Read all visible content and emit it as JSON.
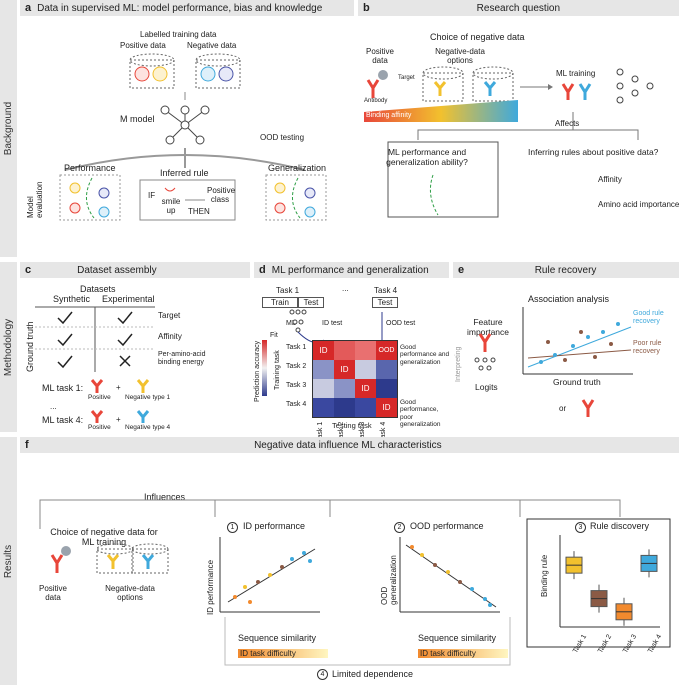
{
  "rows": {
    "background": "Background",
    "methodology": "Methodology",
    "results": "Results"
  },
  "a": {
    "letter": "a",
    "title": "Data in supervised ML: model performance, bias and knowledge",
    "labelled": "Labelled training data",
    "positive": "Positive data",
    "negative": "Negative data",
    "mmodel": "M model",
    "ood": "OOD testing",
    "performance": "Performance",
    "inferred": "Inferred rule",
    "generalization": "Generalization",
    "model_eval": "Model evaluation",
    "if": "IF",
    "smile": "smile up",
    "then": "THEN",
    "positive_class": "Positive class"
  },
  "b": {
    "letter": "b",
    "title": "Research question",
    "choice": "Choice of negative data",
    "positive": "Positive data",
    "target": "Target",
    "negopt": "Negative-data options",
    "antibody": "Antibody",
    "binding": "Binding affinity",
    "mltraining": "ML training",
    "affects": "Affects",
    "q1": "ML performance and generalization ability?",
    "q2": "Inferring rules about positive data?",
    "affinity": "Affinity",
    "aa": "Amino acid importance"
  },
  "c": {
    "letter": "c",
    "title": "Dataset assembly",
    "datasets": "Datasets",
    "synthetic": "Synthetic",
    "experimental": "Experimental",
    "ground_truth": "Ground truth",
    "target": "Target",
    "affinity": "Affinity",
    "peraa": "Per-amino-acid binding energy",
    "task1": "ML task 1:",
    "task4": "ML task 4:",
    "dots": "...",
    "positive": "Positive",
    "plus": "+",
    "neg1": "Negative type 1",
    "neg4": "Negative type 4"
  },
  "d": {
    "letter": "d",
    "title": "ML performance and generalization",
    "task1": "Task 1",
    "task4": "Task 4",
    "dots": "...",
    "train": "Train",
    "test": "Test",
    "ml": "ML",
    "fit": "Fit",
    "idtest": "ID test",
    "oodtest": "OOD test",
    "pred_acc": "Prediction accuracy",
    "training_task": "Training task",
    "testing_task": "Testing task",
    "rows": [
      "Task 1",
      "Task 2",
      "Task 3",
      "Task 4"
    ],
    "cells": [
      [
        "ID",
        "",
        "",
        "OOD"
      ],
      [
        "",
        "ID",
        "",
        ""
      ],
      [
        "",
        "",
        "ID",
        ""
      ],
      [
        "",
        "",
        "",
        "ID"
      ]
    ],
    "note1": "Good performance and generalization",
    "note2": "Good performance, poor generalization"
  },
  "e": {
    "letter": "e",
    "title": "Rule recovery",
    "assoc": "Association analysis",
    "feat": "Feature importance",
    "interpreting": "Interpreting",
    "logits": "Logits",
    "good": "Good rule recovery",
    "poor": "Poor rule recovery",
    "ground_truth": "Ground truth",
    "or": "or"
  },
  "f": {
    "letter": "f",
    "title": "Negative data influence ML characteristics",
    "influences": "Influences",
    "choice": "Choice of negative data for ML training",
    "positive": "Positive data",
    "negopt": "Negative-data options",
    "n1": "1",
    "id_perf": "ID performance",
    "n2": "2",
    "ood_perf": "OOD performance",
    "n3": "3",
    "rule_disc": "Rule discovery",
    "id_axis": "ID performance",
    "ood_axis": "OOD generalization",
    "seq_sim": "Sequence similarity",
    "difficulty": "ID task difficulty",
    "binding_rule": "Binding rule",
    "tasks": [
      "Task 1",
      "Task 2",
      "Task 3",
      "Task 4"
    ],
    "n4": "4",
    "limited": "Limited dependence"
  },
  "colors": {
    "red": "#e8463a",
    "yellow": "#f2c12e",
    "blue": "#3fa9dc",
    "brown": "#8b5a45",
    "orange": "#f28a2e",
    "grey": "#9aa3ad"
  },
  "chart_data": {
    "type": "box",
    "title": "Rule discovery",
    "ylabel": "Binding rule",
    "categories": [
      "Task 1",
      "Task 2",
      "Task 3",
      "Task 4"
    ],
    "series": [
      {
        "name": "Task 1",
        "median": 0.68
      },
      {
        "name": "Task 2",
        "median": 0.3
      },
      {
        "name": "Task 3",
        "median": 0.15
      },
      {
        "name": "Task 4",
        "median": 0.7
      }
    ]
  }
}
